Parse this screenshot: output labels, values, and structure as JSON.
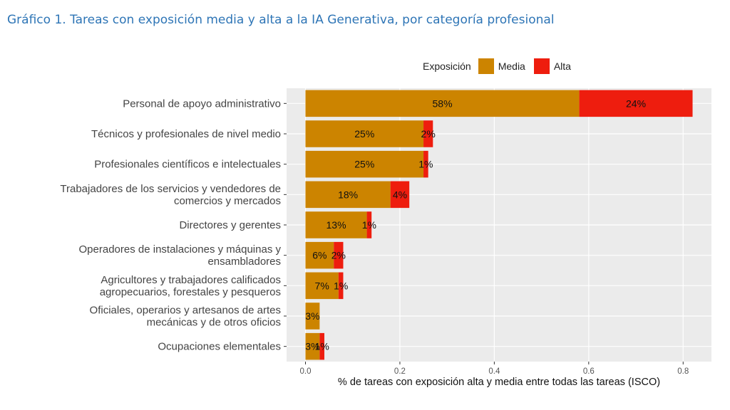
{
  "title": "Gráfico 1. Tareas con exposición media y alta a la IA Generativa, por categoría profesional",
  "legend": {
    "title": "Exposición",
    "items": [
      {
        "label": "Media",
        "color": "#cc8400"
      },
      {
        "label": "Alta",
        "color": "#ee1d0e"
      }
    ]
  },
  "chart_data": {
    "type": "bar",
    "orientation": "horizontal",
    "stacked": true,
    "categories": [
      [
        "Personal de apoyo administrativo"
      ],
      [
        "Técnicos y profesionales de nivel medio"
      ],
      [
        "Profesionales científicos e intelectuales"
      ],
      [
        "Trabajadores de los servicios y vendedores de",
        "comercios y mercados"
      ],
      [
        "Directores y gerentes"
      ],
      [
        "Operadores de instalaciones y máquinas y",
        "ensambladores"
      ],
      [
        "Agricultores y trabajadores calificados",
        "agropecuarios, forestales y pesqueros"
      ],
      [
        "Oficiales, operarios y artesanos de artes",
        "mecánicas y de otros oficios"
      ],
      [
        "Ocupaciones elementales"
      ]
    ],
    "series": [
      {
        "name": "Media",
        "color": "#cc8400",
        "values": [
          0.58,
          0.25,
          0.25,
          0.18,
          0.13,
          0.06,
          0.07,
          0.03,
          0.03
        ],
        "labels": [
          "58%",
          "25%",
          "25%",
          "18%",
          "13%",
          "6%",
          "7%",
          "3%",
          "3%"
        ]
      },
      {
        "name": "Alta",
        "color": "#ee1d0e",
        "values": [
          0.24,
          0.02,
          0.01,
          0.04,
          0.01,
          0.02,
          0.01,
          0.0,
          0.01
        ],
        "labels": [
          "24%",
          "2%",
          "1%",
          "4%",
          "1%",
          "2%",
          "1%",
          "",
          "1%"
        ]
      }
    ],
    "xlabel": "% de tareas con exposición alta y media entre todas las tareas (ISCO)",
    "xlim": [
      -0.04,
      0.86
    ],
    "xticks": [
      0.0,
      0.2,
      0.4,
      0.6,
      0.8
    ],
    "xtick_labels": [
      "0.0",
      "0.2",
      "0.4",
      "0.6",
      "0.8"
    ],
    "grid": true,
    "panel_background": "#ebebeb",
    "legend_position": "top-right"
  }
}
